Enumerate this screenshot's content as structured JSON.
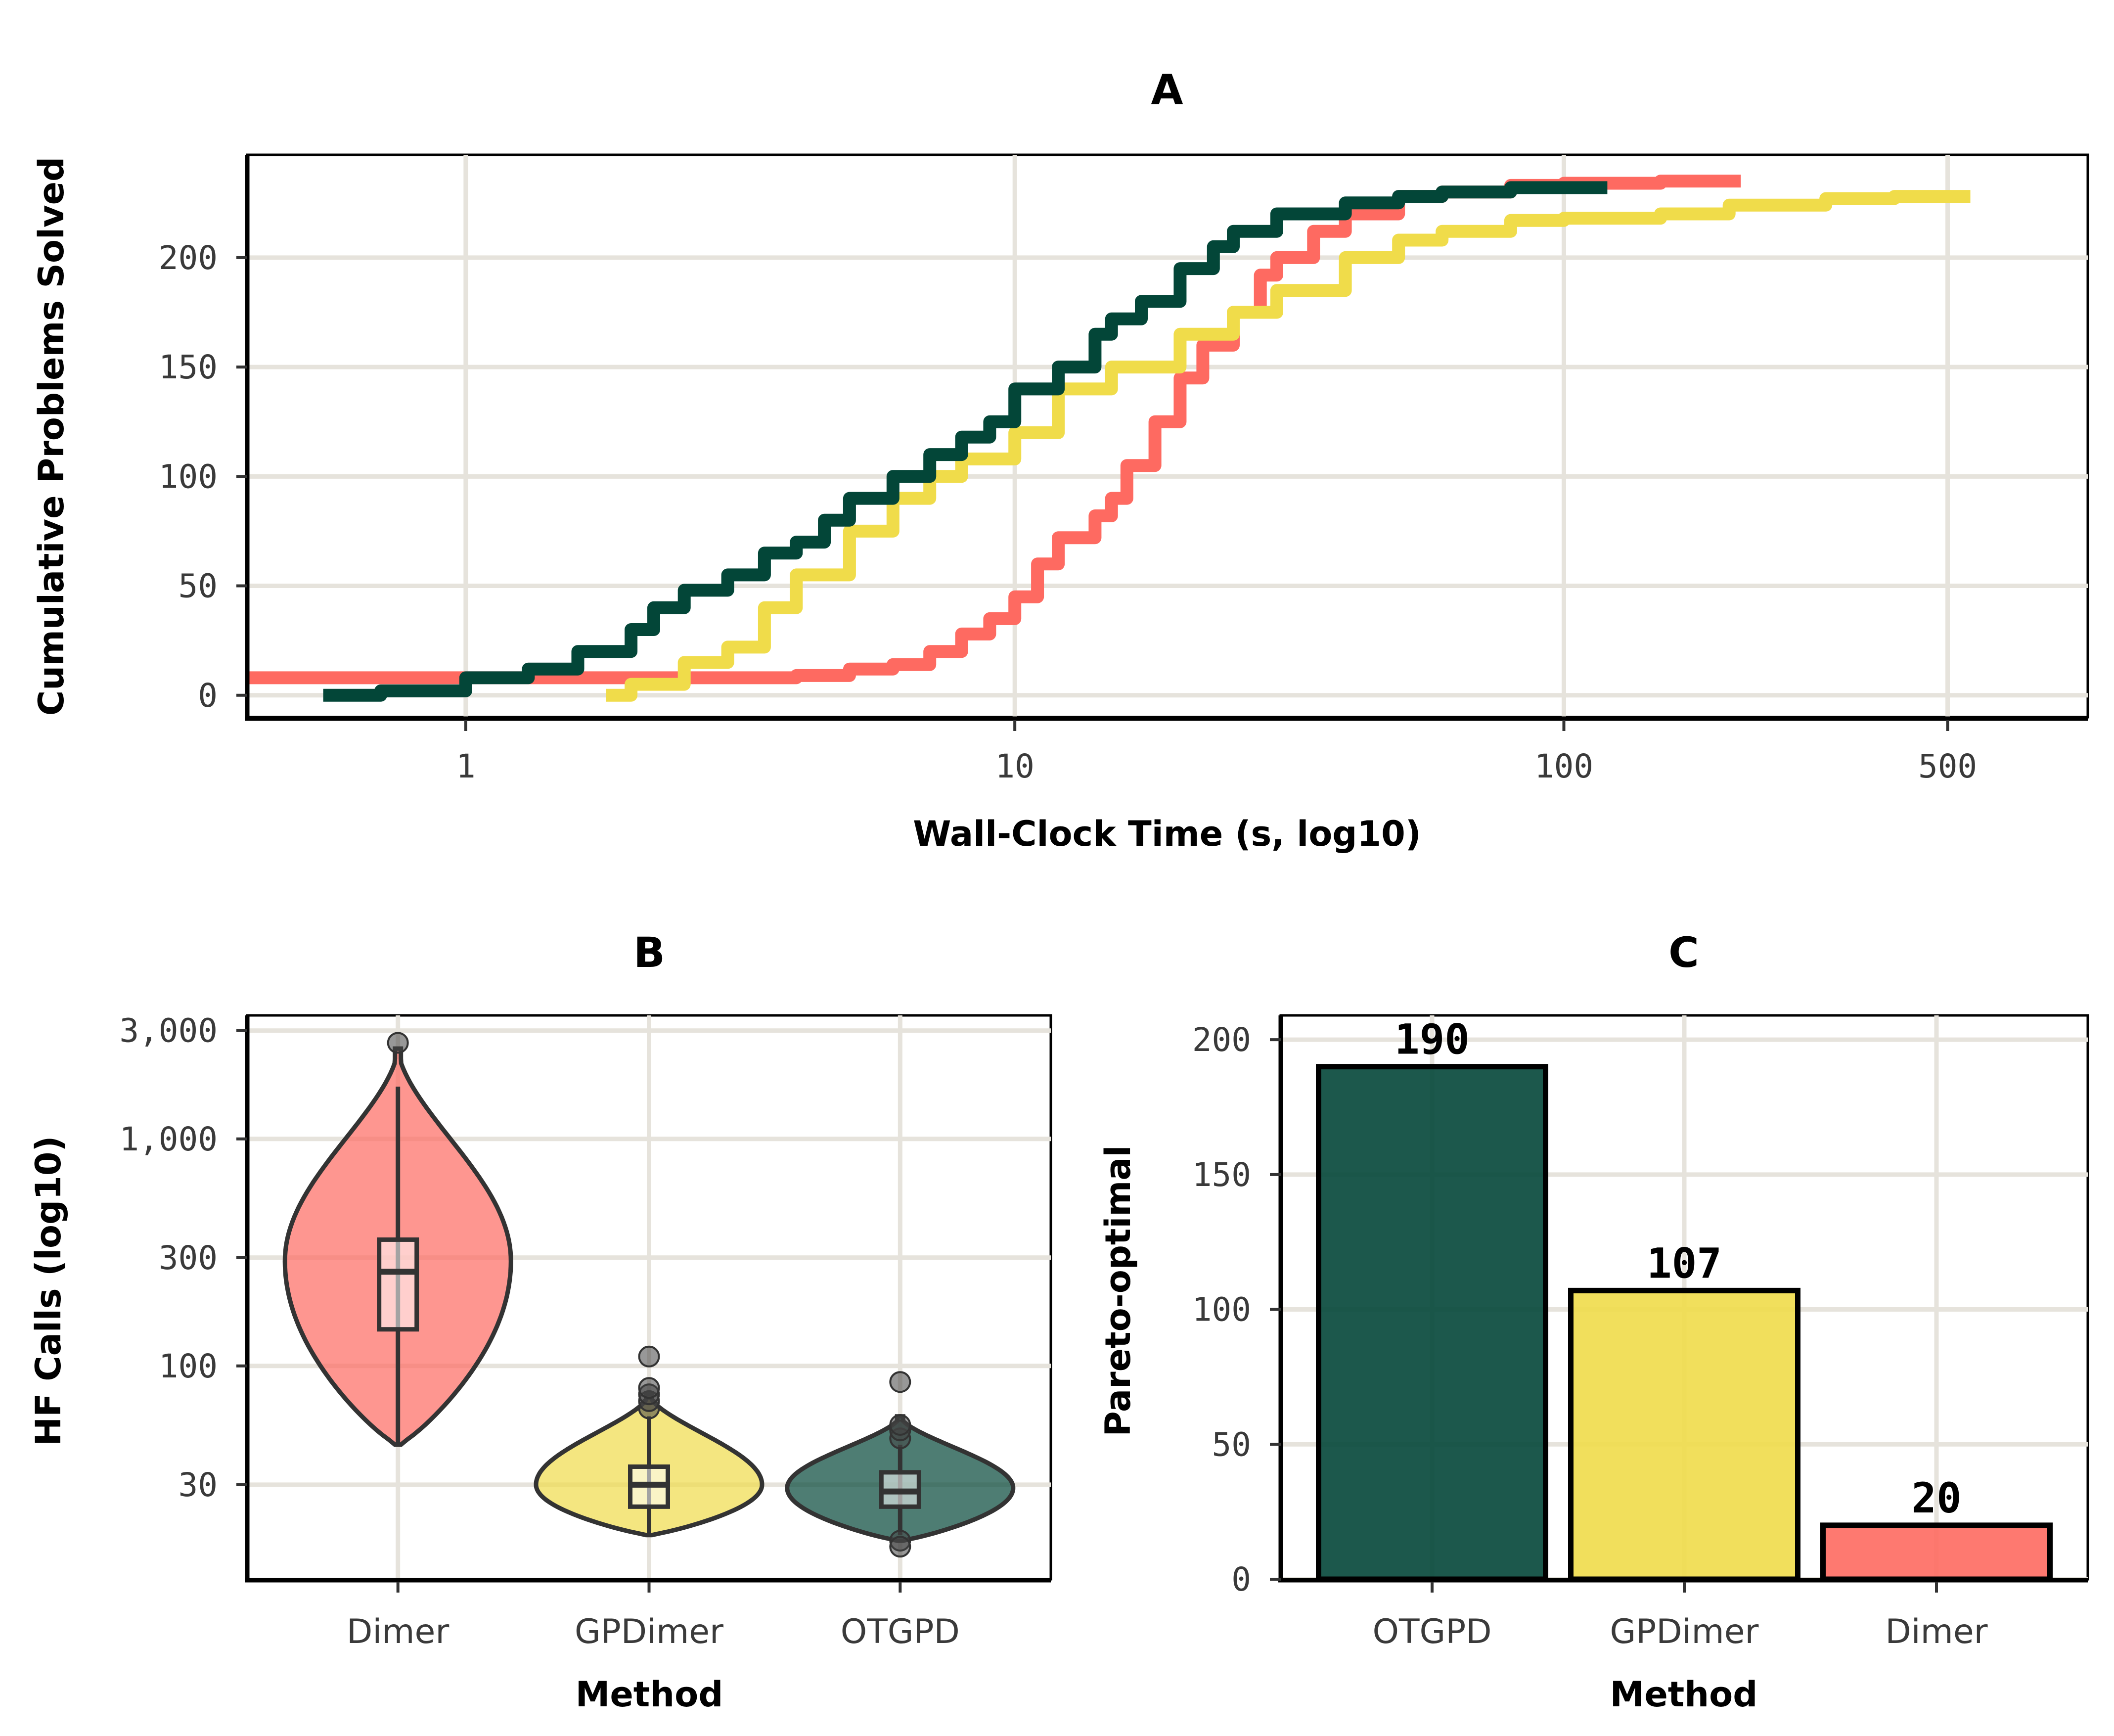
{
  "colors": {
    "OTGPD": "#034638",
    "GPDimer": "#f0dc4a",
    "Dimer": "#fe6a61",
    "grid": "#e6e3dc"
  },
  "chart_data": [
    {
      "panel": "A",
      "type": "line",
      "title": "A",
      "xlabel": "Wall-Clock Time (s, log10)",
      "ylabel": "Cumulative Problems Solved",
      "x_scale": "log10",
      "x_ticks": [
        1,
        10,
        100,
        500
      ],
      "x_tick_labels": [
        "1",
        "10",
        "100",
        "500"
      ],
      "y_ticks": [
        0,
        50,
        100,
        150,
        200
      ],
      "y_tick_labels": [
        "0",
        "50",
        "100",
        "150",
        "200"
      ],
      "xlim": [
        0.4,
        900
      ],
      "ylim": [
        -10,
        247
      ],
      "grid": true,
      "series": [
        {
          "key": "Dimer",
          "x": [
            0.4,
            1,
            2,
            3,
            4,
            5,
            6,
            7,
            8,
            9,
            10,
            11,
            12,
            14,
            15,
            16,
            18,
            20,
            22,
            25,
            28,
            30,
            35,
            40,
            50,
            60,
            80,
            100,
            150,
            210
          ],
          "y": [
            8,
            8,
            8,
            8,
            9,
            12,
            14,
            20,
            28,
            35,
            45,
            60,
            72,
            82,
            90,
            105,
            125,
            145,
            160,
            175,
            192,
            200,
            212,
            220,
            228,
            230,
            233,
            234,
            235,
            235
          ]
        },
        {
          "key": "GPDimer",
          "x": [
            1.8,
            2,
            2.5,
            3,
            3.5,
            4,
            5,
            6,
            7,
            8,
            10,
            12,
            15,
            20,
            25,
            30,
            40,
            50,
            60,
            80,
            100,
            150,
            200,
            300,
            400,
            550
          ],
          "y": [
            0,
            5,
            15,
            22,
            40,
            55,
            75,
            90,
            100,
            108,
            120,
            140,
            150,
            165,
            175,
            185,
            200,
            208,
            212,
            217,
            218,
            220,
            224,
            227,
            228,
            228
          ]
        },
        {
          "key": "OTGPD",
          "x": [
            0.55,
            0.7,
            1,
            1.3,
            1.6,
            2,
            2.2,
            2.5,
            3,
            3.5,
            4,
            4.5,
            5,
            6,
            7,
            8,
            9,
            10,
            12,
            14,
            15,
            17,
            20,
            23,
            25,
            30,
            40,
            50,
            60,
            80,
            100,
            120
          ],
          "y": [
            0,
            2,
            8,
            12,
            20,
            30,
            40,
            48,
            55,
            65,
            70,
            80,
            90,
            100,
            110,
            118,
            125,
            140,
            150,
            165,
            172,
            180,
            195,
            205,
            212,
            220,
            225,
            228,
            230,
            232,
            232,
            232
          ]
        }
      ]
    },
    {
      "panel": "B",
      "type": "violin",
      "title": "B",
      "xlabel": "Method",
      "ylabel": "HF Calls (log10)",
      "y_scale": "log10",
      "y_ticks": [
        30,
        100,
        300,
        1000,
        3000
      ],
      "y_tick_labels": [
        "30",
        "100",
        "300",
        "1,000",
        "3,000"
      ],
      "ylim": [
        11.5,
        3500
      ],
      "categories": [
        "Dimer",
        "GPDimer",
        "OTGPD"
      ],
      "grid": true,
      "violins": [
        {
          "key": "Dimer",
          "min": 45,
          "max": 2500,
          "q1": 145,
          "median": 260,
          "q3": 360,
          "whisker_low": 45,
          "whisker_high": 1700,
          "max_density_at": 290,
          "half_width": 0.45,
          "outliers": [
            2650
          ]
        },
        {
          "key": "GPDimer",
          "min": 18,
          "max": 75,
          "q1": 24,
          "median": 30,
          "q3": 36,
          "whisker_low": 18,
          "whisker_high": 60,
          "max_density_at": 30,
          "half_width": 0.45,
          "outliers": [
            65,
            70,
            75,
            80,
            110
          ]
        },
        {
          "key": "OTGPD",
          "min": 17,
          "max": 60,
          "q1": 24,
          "median": 28,
          "q3": 34,
          "whisker_low": 18,
          "whisker_high": 45,
          "max_density_at": 29,
          "half_width": 0.45,
          "outliers": [
            17,
            16,
            48,
            52,
            55,
            85
          ]
        }
      ]
    },
    {
      "panel": "C",
      "type": "bar",
      "title": "C",
      "xlabel": "Method",
      "ylabel": "Pareto-optimal",
      "categories": [
        "OTGPD",
        "GPDimer",
        "Dimer"
      ],
      "values": [
        190,
        107,
        20
      ],
      "value_labels": [
        "190",
        "107",
        "20"
      ],
      "y_ticks": [
        0,
        50,
        100,
        150,
        200
      ],
      "y_tick_labels": [
        "0",
        "50",
        "100",
        "150",
        "200"
      ],
      "ylim": [
        0,
        209
      ],
      "grid": true
    }
  ]
}
